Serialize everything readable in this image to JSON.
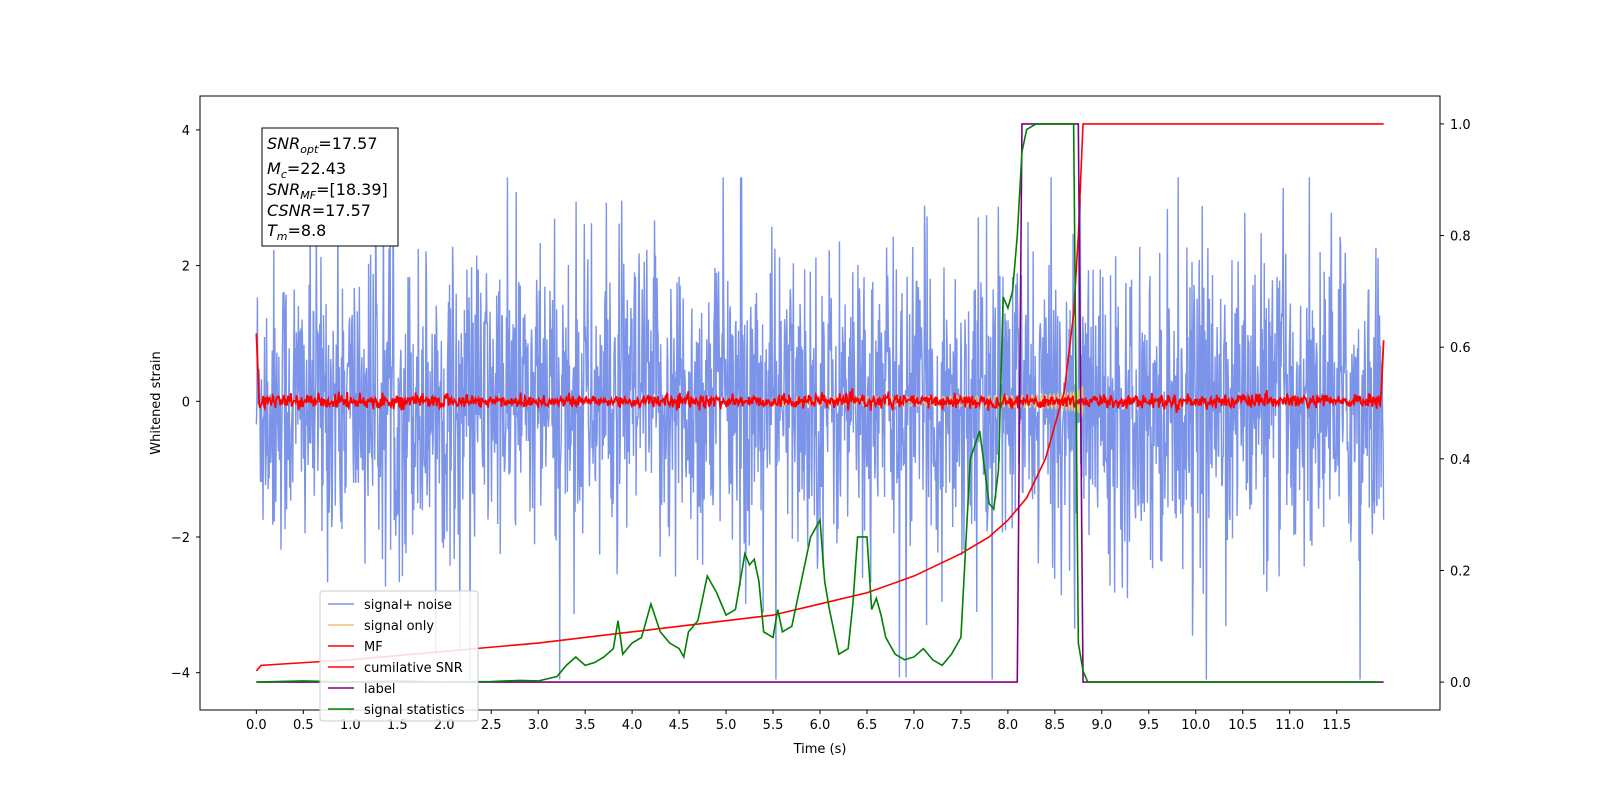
{
  "chart_data": {
    "type": "line",
    "xlabel": "Time (s)",
    "ylabel": "Whitened strain",
    "xlim": [
      -0.6,
      12.6
    ],
    "ylim": [
      -4.55,
      4.5
    ],
    "ylim_right": [
      -0.05,
      1.05
    ],
    "x_ticks": [
      "0.0",
      "0.5",
      "1.0",
      "1.5",
      "2.0",
      "2.5",
      "3.0",
      "3.5",
      "4.0",
      "4.5",
      "5.0",
      "5.5",
      "6.0",
      "6.5",
      "7.0",
      "7.5",
      "8.0",
      "8.5",
      "9.0",
      "9.5",
      "10.0",
      "10.5",
      "11.0",
      "11.5"
    ],
    "y_ticks": [
      "4",
      "2",
      "0",
      "−2",
      "−4"
    ],
    "y_ticks_right": [
      "1.0",
      "0.8",
      "0.6",
      "0.4",
      "0.2",
      "0.0"
    ],
    "legend_position": "lower-left",
    "info_box": {
      "snr_opt": {
        "base": "SNR",
        "sub": "opt",
        "value": "=17.57"
      },
      "mc": {
        "base": "M",
        "sub": "c",
        "value": "=22.43"
      },
      "snr_mf": {
        "base": "SNR",
        "sub": "MF",
        "value": "=[18.39]"
      },
      "csnr": {
        "base": "CSNR",
        "sub": "",
        "value": "=17.57"
      },
      "tm": {
        "base": "T",
        "sub": "m",
        "value": "=8.8"
      }
    },
    "series": [
      {
        "name": "signal+ noise",
        "color": "#7b93e8",
        "axis": "left",
        "noise_amplitude": 1.1,
        "t_range": [
          0.0,
          12.0
        ]
      },
      {
        "name": "signal only",
        "color": "#f0c374",
        "axis": "left",
        "merger_time": 8.8,
        "peak_amplitude": 1.6
      },
      {
        "name": "MF",
        "color": "#ff0000",
        "axis": "left",
        "noise_amplitude": 0.05,
        "t_range": [
          0.0,
          12.0
        ]
      },
      {
        "name": "cumilative SNR",
        "color": "#ff0000",
        "axis": "right",
        "x": [
          0.0,
          0.05,
          1.0,
          2.0,
          3.0,
          4.0,
          5.0,
          5.5,
          6.0,
          6.5,
          7.0,
          7.5,
          7.8,
          8.0,
          8.2,
          8.4,
          8.6,
          8.7,
          8.75,
          8.8,
          8.85,
          12.0
        ],
        "y": [
          0.02,
          0.03,
          0.04,
          0.055,
          0.07,
          0.09,
          0.11,
          0.12,
          0.14,
          0.16,
          0.19,
          0.23,
          0.26,
          0.29,
          0.33,
          0.4,
          0.52,
          0.66,
          0.8,
          1.0,
          1.0,
          1.0
        ]
      },
      {
        "name": "label",
        "color": "#800080",
        "axis": "right",
        "x": [
          0.0,
          8.1,
          8.15,
          8.75,
          8.8,
          12.0
        ],
        "y": [
          0.0,
          0.0,
          1.0,
          1.0,
          0.0,
          0.0
        ]
      },
      {
        "name": "signal statistics",
        "color": "#008000",
        "axis": "right",
        "x": [
          0.0,
          0.5,
          1.0,
          1.5,
          2.0,
          2.5,
          2.8,
          3.0,
          3.2,
          3.3,
          3.4,
          3.5,
          3.6,
          3.7,
          3.8,
          3.85,
          3.9,
          4.0,
          4.1,
          4.2,
          4.3,
          4.4,
          4.5,
          4.55,
          4.6,
          4.7,
          4.8,
          4.9,
          5.0,
          5.1,
          5.2,
          5.25,
          5.3,
          5.35,
          5.4,
          5.5,
          5.55,
          5.6,
          5.7,
          5.8,
          5.9,
          6.0,
          6.05,
          6.1,
          6.2,
          6.3,
          6.35,
          6.4,
          6.5,
          6.55,
          6.6,
          6.65,
          6.7,
          6.8,
          6.9,
          7.0,
          7.1,
          7.2,
          7.3,
          7.4,
          7.5,
          7.6,
          7.7,
          7.8,
          7.85,
          7.9,
          7.95,
          8.0,
          8.05,
          8.1,
          8.15,
          8.2,
          8.3,
          8.4,
          8.5,
          8.6,
          8.7,
          8.75,
          8.8,
          8.85,
          8.9,
          9.0,
          10.0,
          11.0,
          11.95
        ],
        "y": [
          0.0,
          0.002,
          0.0,
          0.002,
          0.0,
          0.001,
          0.003,
          0.002,
          0.01,
          0.03,
          0.045,
          0.03,
          0.035,
          0.045,
          0.06,
          0.11,
          0.05,
          0.07,
          0.08,
          0.14,
          0.09,
          0.07,
          0.06,
          0.045,
          0.09,
          0.11,
          0.19,
          0.16,
          0.12,
          0.13,
          0.23,
          0.21,
          0.22,
          0.18,
          0.09,
          0.08,
          0.13,
          0.09,
          0.1,
          0.18,
          0.26,
          0.29,
          0.18,
          0.13,
          0.05,
          0.06,
          0.14,
          0.26,
          0.26,
          0.13,
          0.15,
          0.12,
          0.08,
          0.05,
          0.04,
          0.045,
          0.06,
          0.04,
          0.03,
          0.05,
          0.08,
          0.4,
          0.45,
          0.32,
          0.31,
          0.38,
          0.69,
          0.67,
          0.7,
          0.8,
          0.95,
          0.99,
          1.0,
          1.0,
          1.0,
          1.0,
          1.0,
          0.07,
          0.02,
          0.0,
          0.0,
          0.0,
          0.0,
          0.0,
          0.0
        ]
      }
    ]
  }
}
